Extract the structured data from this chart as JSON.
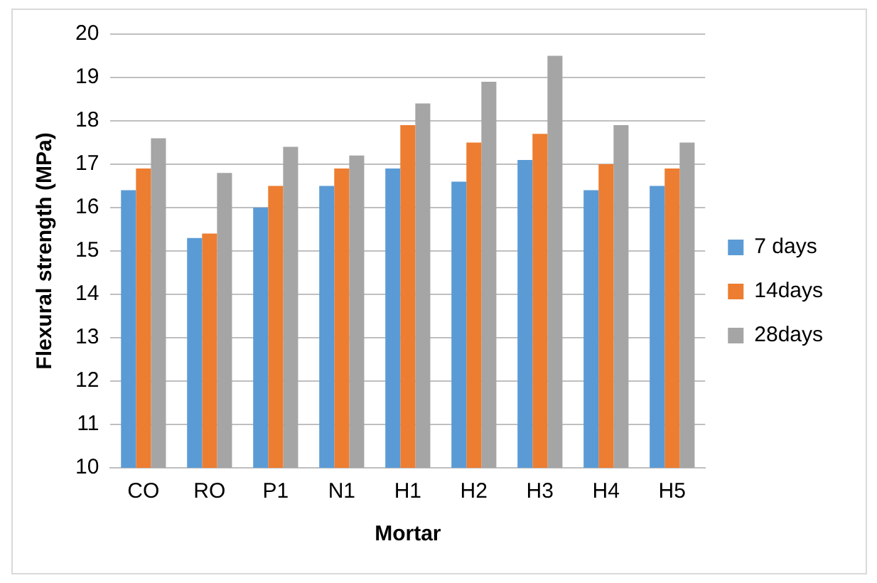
{
  "chart_data": {
    "type": "bar",
    "xlabel": "Mortar",
    "ylabel": "Flexural strength (MPa)",
    "categories": [
      "CO",
      "RO",
      "P1",
      "N1",
      "H1",
      "H2",
      "H3",
      "H4",
      "H5"
    ],
    "series": [
      {
        "name": "7 days",
        "color": "#5b9bd5",
        "values": [
          16.4,
          15.3,
          16.0,
          16.5,
          16.9,
          16.6,
          17.1,
          16.4,
          16.5
        ]
      },
      {
        "name": "14days",
        "color": "#ed7d31",
        "values": [
          16.9,
          15.4,
          16.5,
          16.9,
          17.9,
          17.5,
          17.7,
          17.0,
          16.9
        ]
      },
      {
        "name": "28days",
        "color": "#a5a5a5",
        "values": [
          17.6,
          16.8,
          17.4,
          17.2,
          18.4,
          18.9,
          19.5,
          17.9,
          17.5
        ]
      }
    ],
    "ylim": [
      10,
      20
    ],
    "yticks": [
      10,
      11,
      12,
      13,
      14,
      15,
      16,
      17,
      18,
      19,
      20
    ],
    "grid": "y",
    "legend": "right"
  }
}
